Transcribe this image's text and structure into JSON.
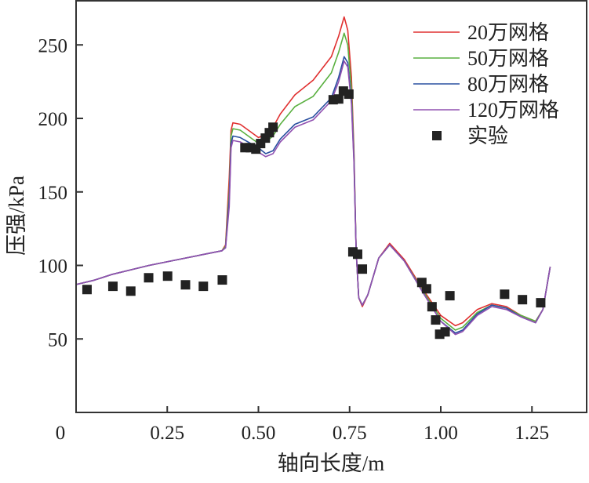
{
  "chart_data": {
    "type": "line",
    "title": "",
    "xlabel": "轴向长度/m",
    "ylabel": "压强/kPa",
    "xlim": [
      0,
      1.4
    ],
    "ylim": [
      0,
      280
    ],
    "xticks": [
      0,
      0.25,
      0.5,
      0.75,
      1.0,
      1.25
    ],
    "xtick_labels": [
      "0",
      "0.25",
      "0.50",
      "0.75",
      "1.00",
      "1.25"
    ],
    "yticks": [
      50,
      100,
      150,
      200,
      250
    ],
    "ytick_labels": [
      "50",
      "100",
      "150",
      "200",
      "250"
    ],
    "grid": false,
    "legend_position": "top-right",
    "x": [
      0,
      0.05,
      0.1,
      0.15,
      0.2,
      0.3,
      0.4,
      0.41,
      0.42,
      0.425,
      0.43,
      0.45,
      0.5,
      0.52,
      0.54,
      0.56,
      0.6,
      0.65,
      0.7,
      0.72,
      0.735,
      0.745,
      0.755,
      0.762,
      0.768,
      0.775,
      0.785,
      0.8,
      0.83,
      0.86,
      0.9,
      0.95,
      1.0,
      1.04,
      1.06,
      1.1,
      1.14,
      1.18,
      1.22,
      1.26,
      1.28,
      1.3
    ],
    "series": [
      {
        "name": "20万网格",
        "color": "#e03030",
        "values": [
          87,
          90,
          94,
          97,
          100,
          105,
          110,
          114,
          160,
          192,
          197,
          196,
          187,
          189,
          194,
          203,
          216,
          226,
          242,
          256,
          269,
          260,
          228,
          178,
          110,
          78,
          72,
          80,
          105,
          115,
          104,
          84,
          66,
          59,
          61,
          70,
          74,
          72,
          66,
          62,
          70,
          99
        ]
      },
      {
        "name": "50万网格",
        "color": "#5ab040",
        "values": [
          87,
          90,
          94,
          97,
          100,
          105,
          110,
          113,
          150,
          188,
          193,
          192,
          183,
          184,
          188,
          196,
          208,
          215,
          231,
          245,
          258,
          250,
          220,
          175,
          110,
          78,
          73,
          80,
          105,
          114,
          103,
          83,
          64,
          56,
          58,
          68,
          73,
          71,
          66,
          62,
          70,
          99
        ]
      },
      {
        "name": "80万网格",
        "color": "#2a50a0",
        "values": [
          87,
          90,
          94,
          97,
          100,
          105,
          110,
          112,
          145,
          183,
          188,
          187,
          180,
          176,
          178,
          186,
          196,
          201,
          214,
          228,
          242,
          238,
          212,
          172,
          110,
          78,
          73,
          80,
          105,
          114,
          103,
          82,
          62,
          54,
          56,
          67,
          73,
          71,
          65,
          61,
          70,
          99
        ]
      },
      {
        "name": "120万网格",
        "color": "#9050b0",
        "values": [
          87,
          90,
          94,
          97,
          100,
          105,
          110,
          112,
          140,
          180,
          185,
          184,
          177,
          174,
          176,
          184,
          194,
          199,
          212,
          225,
          239,
          235,
          210,
          170,
          110,
          78,
          73,
          80,
          105,
          114,
          103,
          82,
          62,
          53,
          55,
          66,
          72,
          70,
          65,
          61,
          70,
          99
        ]
      }
    ],
    "scatter": {
      "name": "实验",
      "color": "#222222",
      "x": [
        0.03,
        0.101,
        0.15,
        0.199,
        0.251,
        0.3,
        0.349,
        0.401,
        0.463,
        0.478,
        0.493,
        0.506,
        0.519,
        0.53,
        0.54,
        0.705,
        0.72,
        0.733,
        0.748,
        0.759,
        0.772,
        0.785,
        0.948,
        0.961,
        0.976,
        0.986,
        0.997,
        1.012,
        1.025,
        1.175,
        1.224,
        1.274
      ],
      "y": [
        83.6,
        85.8,
        82.5,
        91.6,
        92.7,
        86.8,
        85.8,
        90.1,
        180.1,
        180.1,
        179.1,
        182.9,
        186.6,
        190.3,
        194.0,
        212.7,
        213.2,
        218.6,
        216.5,
        109.2,
        107.6,
        97.5,
        88.4,
        84.1,
        71.9,
        62.9,
        53.2,
        54.8,
        79.4,
        80.4,
        76.7,
        74.6
      ]
    }
  }
}
